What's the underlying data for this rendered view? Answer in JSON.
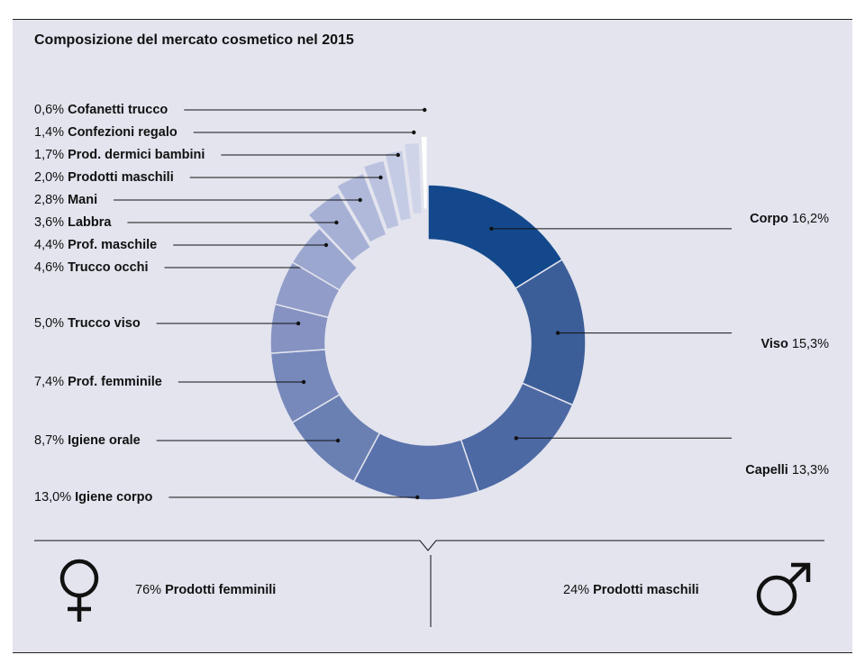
{
  "chart_data": {
    "type": "pie",
    "title": "Composizione del mercato cosmetico nel 2015",
    "segments": [
      {
        "value": "16,2%",
        "num": 16.2,
        "label": "Corpo",
        "side": "right",
        "color": "#13498c"
      },
      {
        "value": "15,3%",
        "num": 15.3,
        "label": "Viso",
        "side": "right",
        "color": "#3c5e98"
      },
      {
        "value": "13,3%",
        "num": 13.3,
        "label": "Capelli",
        "side": "right",
        "color": "#4d69a3"
      },
      {
        "value": "13,0%",
        "num": 13.0,
        "label": "Igiene corpo",
        "side": "left",
        "color": "#5a72ab"
      },
      {
        "value": "8,7%",
        "num": 8.7,
        "label": "Igiene orale",
        "side": "left",
        "color": "#6a80b3"
      },
      {
        "value": "7,4%",
        "num": 7.4,
        "label": "Prof. femminile",
        "side": "left",
        "color": "#7788bb"
      },
      {
        "value": "5,0%",
        "num": 5.0,
        "label": "Trucco viso",
        "side": "left",
        "color": "#8592c2"
      },
      {
        "value": "4,6%",
        "num": 4.6,
        "label": "Trucco occhi",
        "side": "left",
        "color": "#919cc8"
      },
      {
        "value": "4,4%",
        "num": 4.4,
        "label": "Prof. maschile",
        "side": "left",
        "color": "#9ca7cf"
      },
      {
        "value": "3,6%",
        "num": 3.6,
        "label": "Labbra",
        "side": "left",
        "color": "#a6b0d5"
      },
      {
        "value": "2,8%",
        "num": 2.8,
        "label": "Mani",
        "side": "left",
        "color": "#b0b9da"
      },
      {
        "value": "2,0%",
        "num": 2.0,
        "label": "Prodotti maschili",
        "side": "left",
        "color": "#bac2df"
      },
      {
        "value": "1,7%",
        "num": 1.7,
        "label": "Prod. dermici bambini",
        "side": "left",
        "color": "#c4cbe4"
      },
      {
        "value": "1,4%",
        "num": 1.4,
        "label": "Confezioni regalo",
        "side": "left",
        "color": "#cfd4e9"
      },
      {
        "value": "0,6%",
        "num": 0.6,
        "label": "Cofanetti trucco",
        "side": "left",
        "color": "#ffffff"
      }
    ]
  },
  "summary": {
    "female": {
      "value": "76%",
      "label": "Prodotti femminili",
      "icon": "female-symbol-icon"
    },
    "male": {
      "value": "24%",
      "label": "Prodotti maschili",
      "icon": "male-symbol-icon"
    }
  }
}
